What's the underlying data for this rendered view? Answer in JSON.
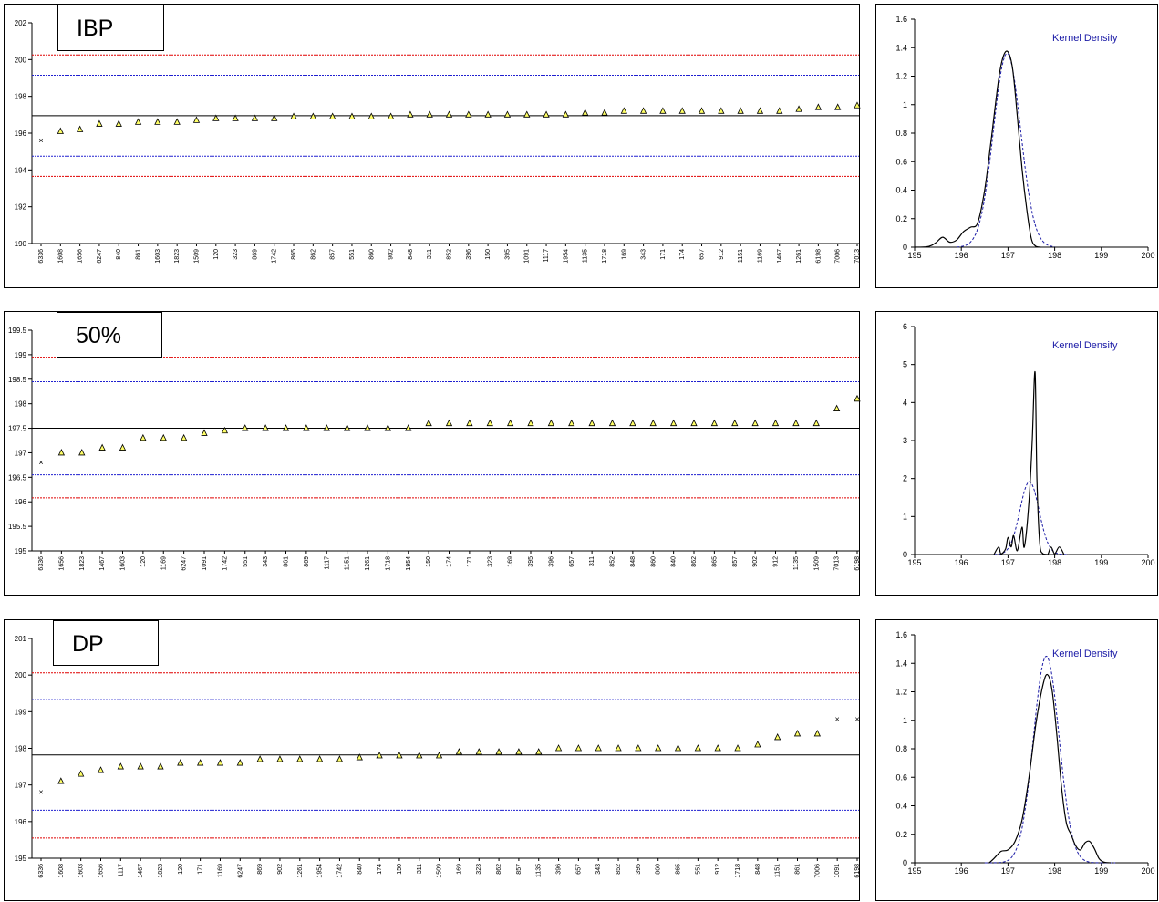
{
  "colors": {
    "upper_red": "#e00000",
    "upper_blue": "#2020d0",
    "mean_line": "#000000",
    "marker_fill": "#ffff66",
    "kde_line": "#000000",
    "normal_line": "#1a1aa6"
  },
  "charts": [
    {
      "title": "IBP",
      "chart_data": {
        "type": "scatter",
        "title": "IBP",
        "ylim": [
          190,
          202
        ],
        "yticks": [
          190,
          192,
          194,
          196,
          198,
          200,
          202
        ],
        "categories": [
          "6336",
          "1608",
          "1656",
          "6247",
          "840",
          "861",
          "1603",
          "1823",
          "1509",
          "120",
          "323",
          "869",
          "1742",
          "865",
          "862",
          "857",
          "551",
          "860",
          "902",
          "848",
          "311",
          "852",
          "396",
          "150",
          "395",
          "1091",
          "1117",
          "1954",
          "1135",
          "1718",
          "169",
          "343",
          "171",
          "174",
          "657",
          "912",
          "1151",
          "1169",
          "1467",
          "1261",
          "6198",
          "7006",
          "7013"
        ],
        "values": [
          195.6,
          196.1,
          196.2,
          196.5,
          196.5,
          196.6,
          196.6,
          196.6,
          196.7,
          196.8,
          196.8,
          196.8,
          196.8,
          196.9,
          196.9,
          196.9,
          196.9,
          196.9,
          196.9,
          197.0,
          197.0,
          197.0,
          197.0,
          197.0,
          197.0,
          197.0,
          197.0,
          197.0,
          197.1,
          197.1,
          197.2,
          197.2,
          197.2,
          197.2,
          197.2,
          197.2,
          197.2,
          197.2,
          197.2,
          197.3,
          197.4,
          197.4,
          197.5
        ],
        "outliers": [
          "6336"
        ],
        "reference_lines": {
          "mean": 196.95,
          "upper_blue": 199.15,
          "lower_blue": 194.75,
          "upper_red": 200.25,
          "lower_red": 193.65
        }
      },
      "density": {
        "type": "line",
        "legend": "Kernel Density",
        "xlim": [
          195,
          200
        ],
        "xticks": [
          195,
          196,
          197,
          198,
          199,
          200
        ],
        "ylim": [
          0,
          1.6
        ],
        "yticks": [
          "0",
          "0.2",
          "0.4",
          "0.6",
          "0.8",
          "1",
          "1.2",
          "1.4",
          "1.6"
        ],
        "kde": [
          [
            195.0,
            0
          ],
          [
            195.3,
            0.005
          ],
          [
            195.45,
            0.03
          ],
          [
            195.6,
            0.07
          ],
          [
            195.75,
            0.035
          ],
          [
            195.9,
            0.05
          ],
          [
            196.05,
            0.11
          ],
          [
            196.2,
            0.14
          ],
          [
            196.35,
            0.17
          ],
          [
            196.5,
            0.4
          ],
          [
            196.65,
            0.78
          ],
          [
            196.8,
            1.18
          ],
          [
            196.9,
            1.34
          ],
          [
            197.0,
            1.37
          ],
          [
            197.1,
            1.25
          ],
          [
            197.2,
            0.92
          ],
          [
            197.3,
            0.55
          ],
          [
            197.4,
            0.27
          ],
          [
            197.5,
            0.06
          ],
          [
            197.6,
            0.005
          ],
          [
            197.7,
            0
          ]
        ],
        "normal": {
          "mean": 196.98,
          "sd": 0.29,
          "peak": 1.36,
          "range": [
            195.9,
            198.0
          ]
        }
      }
    },
    {
      "title": "50%",
      "chart_data": {
        "type": "scatter",
        "title": "50%",
        "ylim": [
          195,
          199.5
        ],
        "yticks": [
          195,
          195.5,
          196,
          196.5,
          197,
          197.5,
          198,
          198.5,
          199,
          199.5
        ],
        "categories": [
          "6336",
          "1656",
          "1823",
          "1467",
          "1603",
          "120",
          "1169",
          "6247",
          "1091",
          "1742",
          "551",
          "343",
          "861",
          "869",
          "1117",
          "1151",
          "1261",
          "1718",
          "1954",
          "150",
          "174",
          "171",
          "323",
          "169",
          "395",
          "396",
          "657",
          "311",
          "852",
          "848",
          "860",
          "840",
          "862",
          "865",
          "857",
          "902",
          "912",
          "1135",
          "1509",
          "7013",
          "6198"
        ],
        "values": [
          196.8,
          197.0,
          197.0,
          197.1,
          197.1,
          197.3,
          197.3,
          197.3,
          197.4,
          197.45,
          197.5,
          197.5,
          197.5,
          197.5,
          197.5,
          197.5,
          197.5,
          197.5,
          197.5,
          197.6,
          197.6,
          197.6,
          197.6,
          197.6,
          197.6,
          197.6,
          197.6,
          197.6,
          197.6,
          197.6,
          197.6,
          197.6,
          197.6,
          197.6,
          197.6,
          197.6,
          197.6,
          197.6,
          197.6,
          197.9,
          198.1
        ],
        "outliers": [
          "6336"
        ],
        "reference_lines": {
          "mean": 197.5,
          "upper_blue": 198.45,
          "lower_blue": 196.55,
          "upper_red": 198.95,
          "lower_red": 196.08
        }
      },
      "density": {
        "type": "line",
        "legend": "Kernel Density",
        "xlim": [
          195,
          200
        ],
        "xticks": [
          195,
          196,
          197,
          198,
          199,
          200
        ],
        "ylim": [
          0,
          6
        ],
        "yticks": [
          "0",
          "1",
          "2",
          "3",
          "4",
          "5",
          "6"
        ],
        "kde": [
          [
            196.7,
            0
          ],
          [
            196.8,
            0.2
          ],
          [
            196.85,
            0.02
          ],
          [
            196.95,
            0.15
          ],
          [
            197.0,
            0.45
          ],
          [
            197.07,
            0.2
          ],
          [
            197.12,
            0.5
          ],
          [
            197.2,
            0.1
          ],
          [
            197.3,
            0.72
          ],
          [
            197.35,
            0.2
          ],
          [
            197.45,
            1.4
          ],
          [
            197.52,
            3.0
          ],
          [
            197.58,
            4.8
          ],
          [
            197.62,
            2.0
          ],
          [
            197.68,
            0.3
          ],
          [
            197.75,
            0.02
          ],
          [
            197.85,
            0
          ],
          [
            197.92,
            0.2
          ],
          [
            198.0,
            0.02
          ],
          [
            198.1,
            0.2
          ],
          [
            198.2,
            0
          ]
        ],
        "normal": {
          "mean": 197.46,
          "sd": 0.205,
          "peak": 1.92,
          "range": [
            196.7,
            198.3
          ]
        }
      }
    },
    {
      "title": "DP",
      "chart_data": {
        "type": "scatter",
        "title": "DP",
        "ylim": [
          195,
          201
        ],
        "yticks": [
          195,
          196,
          197,
          198,
          199,
          200,
          201
        ],
        "categories": [
          "6336",
          "1608",
          "1603",
          "1656",
          "1117",
          "1467",
          "1823",
          "120",
          "171",
          "1169",
          "6247",
          "869",
          "902",
          "1261",
          "1954",
          "1742",
          "840",
          "174",
          "150",
          "311",
          "1509",
          "169",
          "323",
          "862",
          "857",
          "1135",
          "396",
          "657",
          "343",
          "852",
          "395",
          "860",
          "865",
          "551",
          "912",
          "1718",
          "848",
          "1151",
          "861",
          "7006",
          "1091",
          "6198"
        ],
        "values": [
          196.8,
          197.1,
          197.3,
          197.4,
          197.5,
          197.5,
          197.5,
          197.6,
          197.6,
          197.6,
          197.6,
          197.7,
          197.7,
          197.7,
          197.7,
          197.7,
          197.75,
          197.8,
          197.8,
          197.8,
          197.8,
          197.9,
          197.9,
          197.9,
          197.9,
          197.9,
          198.0,
          198.0,
          198.0,
          198.0,
          198.0,
          198.0,
          198.0,
          198.0,
          198.0,
          198.0,
          198.1,
          198.3,
          198.4,
          198.4,
          198.8,
          198.8
        ],
        "outliers": [
          "6336",
          "1091",
          "6198"
        ],
        "reference_lines": {
          "mean": 197.82,
          "upper_blue": 199.33,
          "lower_blue": 196.31,
          "upper_red": 200.06,
          "lower_red": 195.55
        }
      },
      "density": {
        "type": "line",
        "legend": "Kernel Density",
        "xlim": [
          195,
          200
        ],
        "xticks": [
          195,
          196,
          197,
          198,
          199,
          200
        ],
        "ylim": [
          0,
          1.6
        ],
        "yticks": [
          "0",
          "0.2",
          "0.4",
          "0.6",
          "0.8",
          "1",
          "1.2",
          "1.4",
          "1.6"
        ],
        "kde": [
          [
            196.6,
            0
          ],
          [
            196.7,
            0.03
          ],
          [
            196.85,
            0.08
          ],
          [
            197.0,
            0.09
          ],
          [
            197.15,
            0.15
          ],
          [
            197.3,
            0.3
          ],
          [
            197.45,
            0.6
          ],
          [
            197.6,
            0.98
          ],
          [
            197.75,
            1.25
          ],
          [
            197.85,
            1.32
          ],
          [
            197.95,
            1.2
          ],
          [
            198.05,
            0.88
          ],
          [
            198.15,
            0.52
          ],
          [
            198.25,
            0.28
          ],
          [
            198.35,
            0.2
          ],
          [
            198.45,
            0.12
          ],
          [
            198.55,
            0.09
          ],
          [
            198.65,
            0.14
          ],
          [
            198.75,
            0.15
          ],
          [
            198.85,
            0.1
          ],
          [
            198.95,
            0.03
          ],
          [
            199.05,
            0.005
          ],
          [
            199.2,
            0
          ]
        ],
        "normal": {
          "mean": 197.82,
          "sd": 0.275,
          "peak": 1.45,
          "range": [
            196.5,
            199.3
          ]
        }
      }
    }
  ]
}
